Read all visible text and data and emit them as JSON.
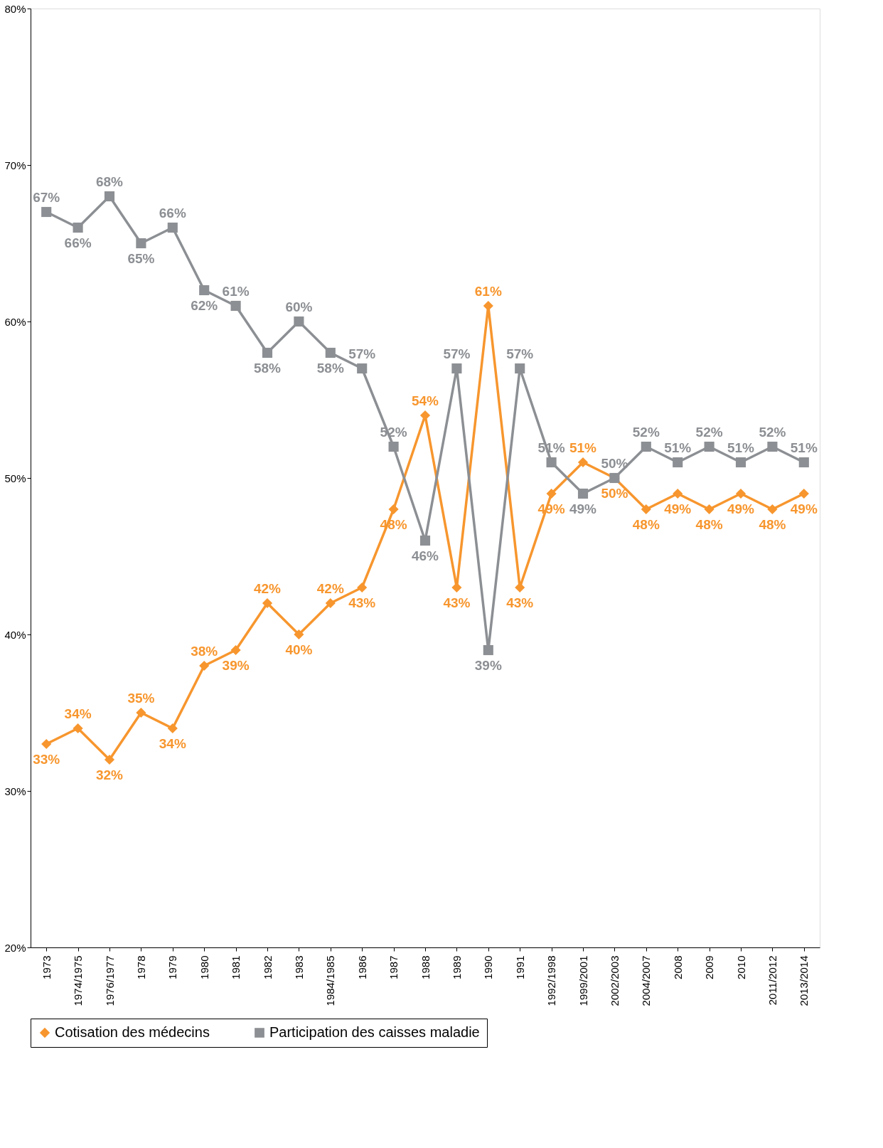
{
  "chart_data": {
    "type": "line",
    "categories": [
      "1973",
      "1974/1975",
      "1976/1977",
      "1978",
      "1979",
      "1980",
      "1981",
      "1982",
      "1983",
      "1984/1985",
      "1986",
      "1987",
      "1988",
      "1989",
      "1990",
      "1991",
      "1992/1998",
      "1999/2001",
      "2002/2003",
      "2004/2007",
      "2008",
      "2009",
      "2010",
      "2011/2012",
      "2013/2014"
    ],
    "series": [
      {
        "name": "Cotisation des médecins",
        "color": "#f7962e",
        "marker": "diamond",
        "values": [
          33,
          34,
          32,
          35,
          34,
          38,
          39,
          42,
          40,
          42,
          43,
          48,
          54,
          43,
          61,
          43,
          49,
          51,
          50,
          48,
          49,
          48,
          49,
          48,
          49
        ],
        "value_labels": [
          "33%",
          "34%",
          "32%",
          "35%",
          "34%",
          "38%",
          "39%",
          "42%",
          "40%",
          "42%",
          "43%",
          "48%",
          "54%",
          "43%",
          "61%",
          "43%",
          "49%",
          "51%",
          "50%",
          "48%",
          "49%",
          "48%",
          "49%",
          "48%",
          "49%"
        ]
      },
      {
        "name": "Participation des caisses maladie",
        "color": "#8c8f93",
        "marker": "square",
        "values": [
          67,
          66,
          68,
          65,
          66,
          62,
          61,
          58,
          60,
          58,
          57,
          52,
          46,
          57,
          39,
          57,
          51,
          49,
          50,
          52,
          51,
          52,
          51,
          52,
          51
        ],
        "value_labels": [
          "67%",
          "66%",
          "68%",
          "65%",
          "66%",
          "62%",
          "61%",
          "58%",
          "60%",
          "58%",
          "57%",
          "52%",
          "46%",
          "57%",
          "39%",
          "57%",
          "51%",
          "49%",
          "50%",
          "52%",
          "51%",
          "52%",
          "51%",
          "52%",
          "51%"
        ]
      }
    ],
    "ylim": [
      20,
      80
    ],
    "yticks": [
      {
        "value": 20,
        "label": "20%"
      },
      {
        "value": 30,
        "label": "30%"
      },
      {
        "value": 40,
        "label": "40%"
      },
      {
        "value": 50,
        "label": "50%"
      },
      {
        "value": 60,
        "label": "60%"
      },
      {
        "value": 70,
        "label": "70%"
      },
      {
        "value": 80,
        "label": "80%"
      }
    ],
    "grid": false,
    "legend": "bottom",
    "line_style": "solid"
  }
}
